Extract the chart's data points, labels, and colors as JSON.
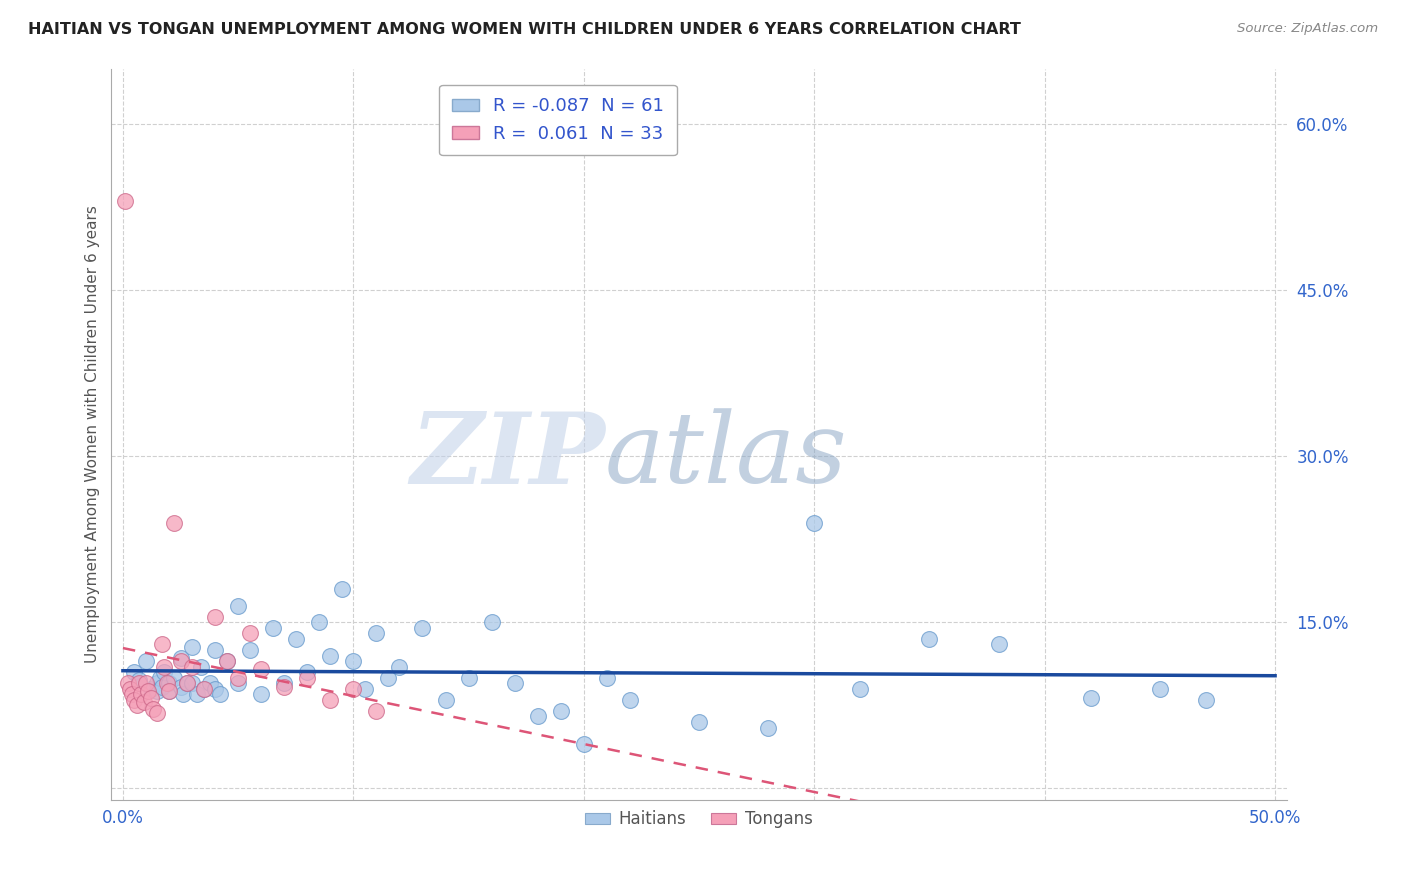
{
  "title": "HAITIAN VS TONGAN UNEMPLOYMENT AMONG WOMEN WITH CHILDREN UNDER 6 YEARS CORRELATION CHART",
  "source": "Source: ZipAtlas.com",
  "ylabel": "Unemployment Among Women with Children Under 6 years",
  "xlabel": "",
  "xlim": [
    -0.005,
    0.505
  ],
  "ylim": [
    -0.01,
    0.65
  ],
  "xticks": [
    0.0,
    0.1,
    0.2,
    0.3,
    0.4,
    0.5
  ],
  "yticks": [
    0.0,
    0.15,
    0.3,
    0.45,
    0.6
  ],
  "grid_color": "#d0d0d0",
  "background_color": "#ffffff",
  "haitian_color": "#aac8e8",
  "tongan_color": "#f5a0b8",
  "haitian_line_color": "#1a4a9e",
  "tongan_line_color": "#dd5577",
  "legend_haitian_label": "R = -0.087  N = 61",
  "legend_tongan_label": "R =  0.061  N = 33",
  "watermark_zip": "ZIP",
  "watermark_atlas": "atlas",
  "legend_label_haitians": "Haitians",
  "legend_label_tongans": "Tongans",
  "haitian_x": [
    0.005,
    0.007,
    0.01,
    0.012,
    0.015,
    0.015,
    0.016,
    0.017,
    0.018,
    0.02,
    0.02,
    0.022,
    0.025,
    0.025,
    0.026,
    0.028,
    0.03,
    0.03,
    0.032,
    0.034,
    0.035,
    0.038,
    0.04,
    0.04,
    0.042,
    0.045,
    0.05,
    0.05,
    0.055,
    0.06,
    0.065,
    0.07,
    0.075,
    0.08,
    0.085,
    0.09,
    0.095,
    0.1,
    0.105,
    0.11,
    0.115,
    0.12,
    0.13,
    0.14,
    0.15,
    0.16,
    0.17,
    0.18,
    0.19,
    0.2,
    0.21,
    0.22,
    0.25,
    0.28,
    0.3,
    0.32,
    0.35,
    0.38,
    0.42,
    0.45,
    0.47
  ],
  "haitian_y": [
    0.105,
    0.098,
    0.115,
    0.09,
    0.095,
    0.088,
    0.1,
    0.092,
    0.105,
    0.095,
    0.088,
    0.1,
    0.118,
    0.092,
    0.085,
    0.095,
    0.128,
    0.095,
    0.085,
    0.11,
    0.09,
    0.095,
    0.125,
    0.09,
    0.085,
    0.115,
    0.165,
    0.095,
    0.125,
    0.085,
    0.145,
    0.095,
    0.135,
    0.105,
    0.15,
    0.12,
    0.18,
    0.115,
    0.09,
    0.14,
    0.1,
    0.11,
    0.145,
    0.08,
    0.1,
    0.15,
    0.095,
    0.065,
    0.07,
    0.04,
    0.1,
    0.08,
    0.06,
    0.055,
    0.24,
    0.09,
    0.135,
    0.13,
    0.082,
    0.09,
    0.08
  ],
  "tongan_x": [
    0.001,
    0.002,
    0.003,
    0.004,
    0.005,
    0.006,
    0.007,
    0.008,
    0.009,
    0.01,
    0.011,
    0.012,
    0.013,
    0.015,
    0.017,
    0.018,
    0.019,
    0.02,
    0.022,
    0.025,
    0.028,
    0.03,
    0.035,
    0.04,
    0.045,
    0.05,
    0.055,
    0.06,
    0.07,
    0.08,
    0.09,
    0.1,
    0.11
  ],
  "tongan_y": [
    0.53,
    0.095,
    0.09,
    0.085,
    0.08,
    0.075,
    0.095,
    0.085,
    0.078,
    0.095,
    0.088,
    0.082,
    0.072,
    0.068,
    0.13,
    0.11,
    0.095,
    0.088,
    0.24,
    0.115,
    0.095,
    0.11,
    0.09,
    0.155,
    0.115,
    0.1,
    0.14,
    0.108,
    0.092,
    0.1,
    0.08,
    0.09,
    0.07
  ]
}
